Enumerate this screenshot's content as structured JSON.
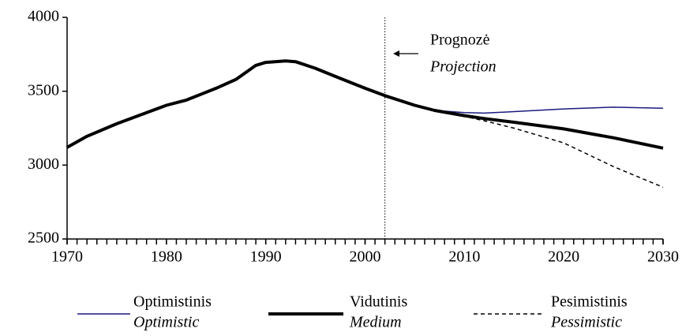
{
  "chart_data": {
    "type": "line",
    "x": [
      1970,
      1972,
      1975,
      1980,
      1982,
      1985,
      1987,
      1989,
      1990,
      1992,
      1993,
      1995,
      1997,
      2000,
      2002,
      2005,
      2007,
      2010,
      2012,
      2015,
      2020,
      2025,
      2030
    ],
    "series": [
      {
        "name": "Optimistinis",
        "name_en": "Optimistic",
        "color": "#1a1a80",
        "width": 1.5,
        "dash": "none",
        "values": [
          null,
          null,
          null,
          null,
          null,
          null,
          null,
          null,
          null,
          null,
          null,
          null,
          null,
          null,
          null,
          null,
          3370,
          3355,
          3352,
          3362,
          3380,
          3392,
          3385
        ]
      },
      {
        "name": "Vidutinis",
        "name_en": "Medium",
        "color": "#000000",
        "width": 4,
        "dash": "none",
        "values": [
          3120,
          3195,
          3280,
          3405,
          3440,
          3520,
          3580,
          3675,
          3695,
          3705,
          3700,
          3655,
          3600,
          3520,
          3470,
          3405,
          3370,
          3335,
          3315,
          3290,
          3245,
          3185,
          3115
        ]
      },
      {
        "name": "Pesimistinis",
        "name_en": "Pessimistic",
        "color": "#000000",
        "width": 1.5,
        "dash": "5 4",
        "values": [
          null,
          null,
          null,
          null,
          null,
          null,
          null,
          null,
          null,
          null,
          null,
          null,
          null,
          null,
          null,
          null,
          3370,
          3330,
          3300,
          3250,
          3150,
          2990,
          2850
        ]
      }
    ],
    "annotation": {
      "x": 2002,
      "text": "Prognozė",
      "text_en": "Projection"
    },
    "xlim": [
      1970,
      2030
    ],
    "xticks": [
      1970,
      1980,
      1990,
      2000,
      2010,
      2020,
      2030
    ],
    "xminorticks": [
      1970,
      1971,
      1972,
      1973,
      1974,
      1975,
      1976,
      1977,
      1978,
      1979,
      1980,
      1981,
      1982,
      1983,
      1984,
      1985,
      1986,
      1987,
      1988,
      1989,
      1990,
      1991,
      1992,
      1993,
      1994,
      1995,
      1996,
      1997,
      1998,
      1999,
      2000,
      2001,
      2002,
      2003,
      2004,
      2005,
      2006,
      2007,
      2008,
      2009,
      2010,
      2011,
      2012,
      2013,
      2014,
      2015,
      2016,
      2017,
      2018,
      2019,
      2020,
      2021,
      2022,
      2023,
      2024,
      2025,
      2026,
      2027,
      2028,
      2029,
      2030
    ],
    "ylim": [
      2500,
      4000
    ],
    "yticks": [
      2500,
      3000,
      3500,
      4000
    ],
    "grid": false
  }
}
